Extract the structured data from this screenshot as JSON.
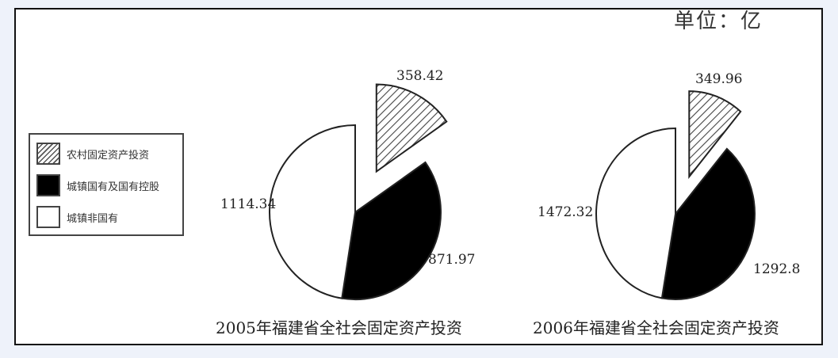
{
  "unit_label": "单位：亿",
  "legend": [
    {
      "label": "农村固定资产投资",
      "fill": "hatched"
    },
    {
      "label": "城镇国有及国有控股",
      "fill": "#000000"
    },
    {
      "label": "城镇非国有",
      "fill": "#ffffff"
    }
  ],
  "chart_data": [
    {
      "type": "pie",
      "title": "2005年福建省全社会固定资产投资",
      "categories": [
        "农村固定资产投资",
        "城镇国有及国有控股",
        "城镇非国有"
      ],
      "values": [
        358.42,
        871.97,
        1114.34
      ],
      "value_labels": [
        "358.42",
        "871.97",
        "1114.34"
      ],
      "exploded": "农村固定资产投资"
    },
    {
      "type": "pie",
      "title": "2006年福建省全社会固定资产投资",
      "categories": [
        "农村固定资产投资",
        "城镇国有及国有控股",
        "城镇非国有"
      ],
      "values": [
        349.96,
        1292.8,
        1472.32
      ],
      "value_labels": [
        "349.96",
        "1292.8",
        "1472.32"
      ],
      "exploded": "农村固定资产投资"
    }
  ]
}
